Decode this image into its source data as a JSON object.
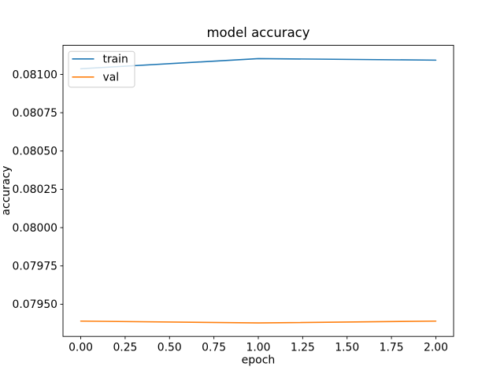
{
  "figure": {
    "background": "#ffffff",
    "frame_color": "#000000",
    "legend_frame_color": "#cccccc"
  },
  "chart_data": {
    "type": "line",
    "title": "model accuracy",
    "xlabel": "epoch",
    "ylabel": "accuracy",
    "x": [
      0,
      1,
      2
    ],
    "series": [
      {
        "name": "train",
        "color": "#1f77b4",
        "values": [
          0.081037,
          0.081103,
          0.081093
        ]
      },
      {
        "name": "val",
        "color": "#ff7f0e",
        "values": [
          0.07939,
          0.079378,
          0.07939
        ]
      }
    ],
    "xlim": [
      -0.1,
      2.1
    ],
    "ylim": [
      0.07929,
      0.08119
    ],
    "xticks": [
      0.0,
      0.25,
      0.5,
      0.75,
      1.0,
      1.25,
      1.5,
      1.75,
      2.0
    ],
    "xtick_labels": [
      "0.00",
      "0.25",
      "0.50",
      "0.75",
      "1.00",
      "1.25",
      "1.50",
      "1.75",
      "2.00"
    ],
    "yticks": [
      0.0795,
      0.07975,
      0.08,
      0.08025,
      0.0805,
      0.08075,
      0.081
    ],
    "ytick_labels": [
      "0.07950",
      "0.07975",
      "0.08000",
      "0.08025",
      "0.08050",
      "0.08075",
      "0.08100"
    ],
    "grid": false,
    "legend": {
      "position": "upper-left",
      "entries": [
        "train",
        "val"
      ],
      "frame": true,
      "frame_alpha": 0.8
    }
  }
}
